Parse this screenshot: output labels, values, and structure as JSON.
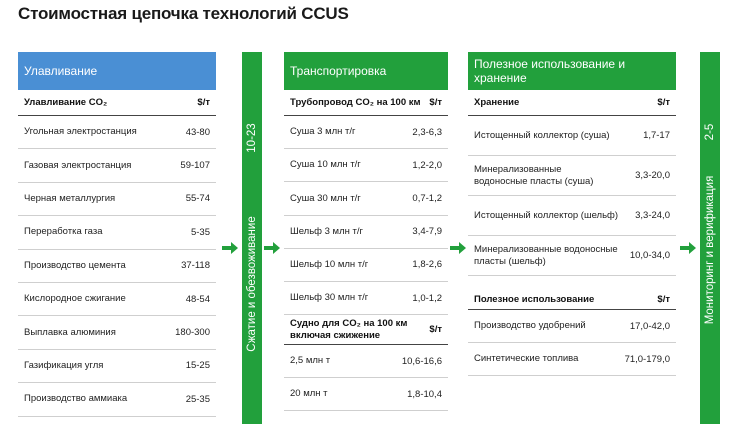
{
  "title": "Стоимостная цепочка технологий CCUS",
  "colors": {
    "blue": "#4a8fd4",
    "green": "#22a03c"
  },
  "capture": {
    "header": "Улавливание",
    "table_head": {
      "label": "Улавливание CO₂",
      "unit": "$/т"
    },
    "rows": [
      {
        "label": "Угольная электростанция",
        "value": "43-80"
      },
      {
        "label": "Газовая электростанция",
        "value": "59-107"
      },
      {
        "label": "Черная металлургия",
        "value": "55-74"
      },
      {
        "label": "Переработка газа",
        "value": "5-35"
      },
      {
        "label": "Производство цемента",
        "value": "37-118"
      },
      {
        "label": "Кислородное сжигание",
        "value": "48-54"
      },
      {
        "label": "Выплавка алюминия",
        "value": "180-300"
      },
      {
        "label": "Газификация угля",
        "value": "15-25"
      },
      {
        "label": "Производство аммиака",
        "value": "25-35"
      }
    ]
  },
  "bar1": {
    "text": "Сжатие и обезвоживание",
    "number": "10-23"
  },
  "transport": {
    "header": "Транспортировка",
    "pipe_head": {
      "label": "Трубопровод CO₂ на 100 км",
      "unit": "$/т"
    },
    "pipe_rows": [
      {
        "label": "Суша 3 млн т/г",
        "value": "2,3-6,3"
      },
      {
        "label": "Суша 10 млн т/г",
        "value": "1,2-2,0"
      },
      {
        "label": "Суша 30 млн т/г",
        "value": "0,7-1,2"
      },
      {
        "label": "Шельф 3 млн т/г",
        "value": "3,4-7,9"
      },
      {
        "label": "Шельф 10 млн т/г",
        "value": "1,8-2,6"
      },
      {
        "label": "Шельф 30 млн т/г",
        "value": "1,0-1,2"
      }
    ],
    "ship_head": {
      "label": "Судно для CO₂ на 100 км\nвключая сжижение",
      "unit": "$/т"
    },
    "ship_rows": [
      {
        "label": "2,5 млн т",
        "value": "10,6-16,6"
      },
      {
        "label": "20 млн т",
        "value": "1,8-10,4"
      }
    ]
  },
  "use": {
    "header": "Полезное использование и хранение",
    "storage_head": {
      "label": "Хранение",
      "unit": "$/т"
    },
    "storage_rows": [
      {
        "label": "Истощенный коллектор (суша)",
        "value": "1,7-17"
      },
      {
        "label": "Минерализованные\nводоносные пласты (суша)",
        "value": "3,3-20,0"
      },
      {
        "label": "Истощенный коллектор (шельф)",
        "value": "3,3-24,0"
      },
      {
        "label": "Минерализованные водоносные\nпласты (шельф)",
        "value": "10,0-34,0"
      }
    ],
    "util_head": {
      "label": "Полезное использование",
      "unit": "$/т"
    },
    "util_rows": [
      {
        "label": "Производство удобрений",
        "value": "17,0-42,0"
      },
      {
        "label": "Синтетические топлива",
        "value": "71,0-179,0"
      }
    ]
  },
  "bar2": {
    "text": "Мониторинг и верификация",
    "number": "2-5"
  }
}
